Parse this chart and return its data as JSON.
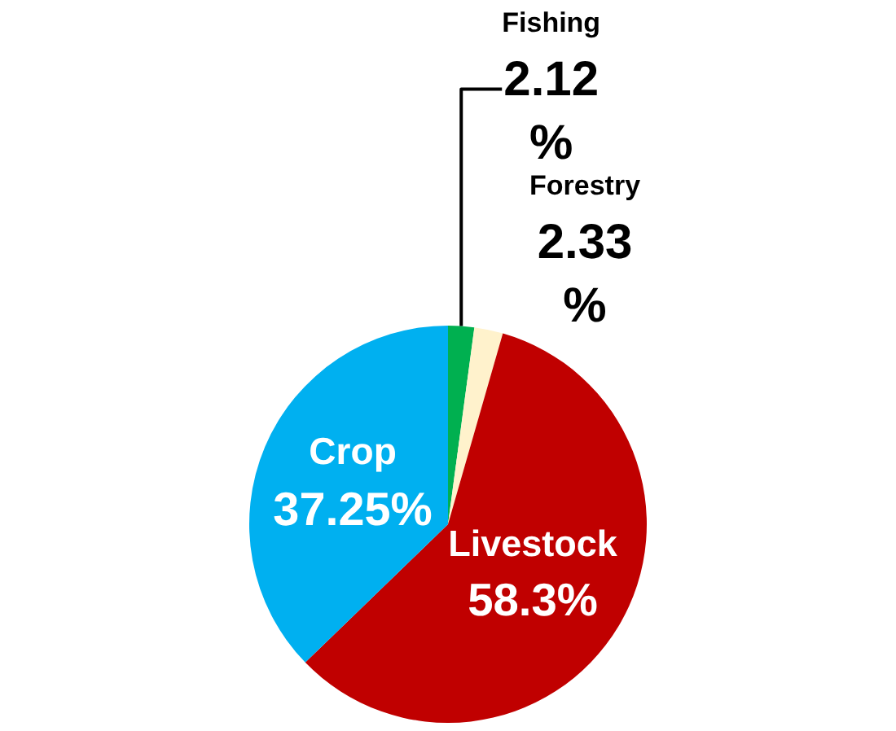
{
  "chart_data": {
    "type": "pie",
    "categories": [
      "Fishing",
      "Forestry",
      "Livestock",
      "Crop"
    ],
    "values": [
      2.12,
      2.33,
      58.3,
      37.25
    ],
    "colors": [
      "#00b050",
      "#fff2cc",
      "#c00000",
      "#00b0f0"
    ],
    "value_labels": [
      "2.12%",
      "2.33%",
      "58.3%",
      "37.25%"
    ],
    "legend": false
  }
}
